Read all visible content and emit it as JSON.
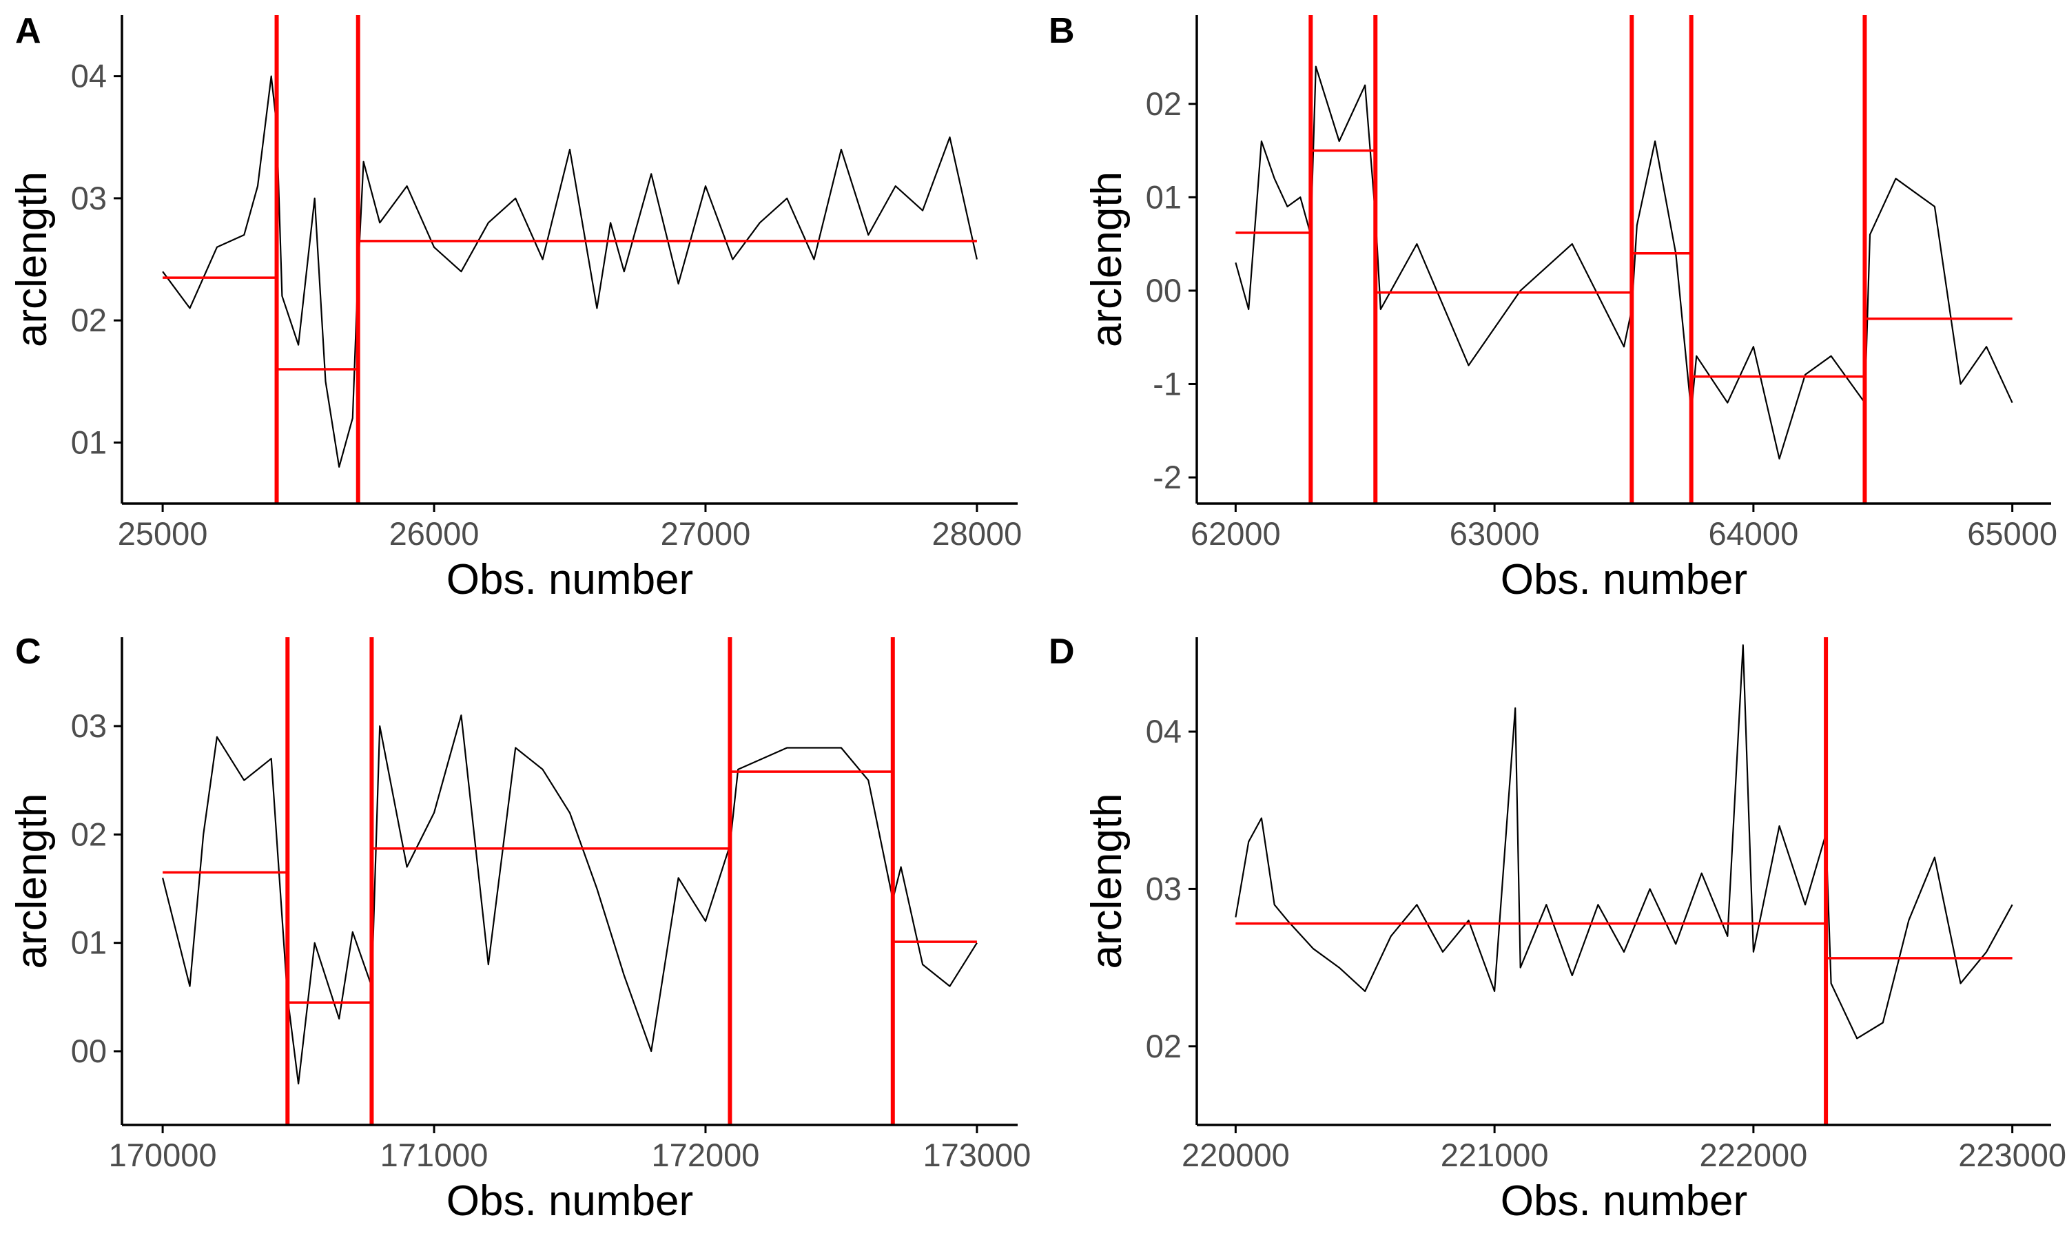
{
  "colors": {
    "series": "#000000",
    "changepoint": "#ff0000",
    "background": "#ffffff"
  },
  "chart_data": [
    {
      "panel": "A",
      "type": "line",
      "xlabel": "Obs. number",
      "ylabel": "arclength",
      "xlim": [
        24850,
        28150
      ],
      "ylim": [
        0.105,
        0.145
      ],
      "xticks": [
        25000,
        26000,
        27000,
        28000
      ],
      "xtick_labels": [
        "25000",
        "26000",
        "27000",
        "28000"
      ],
      "yticks": [
        0.11,
        0.12,
        0.13,
        0.14
      ],
      "ytick_labels": [
        "01",
        "02",
        "03",
        "04"
      ],
      "x": [
        25000,
        25100,
        25200,
        25300,
        25350,
        25400,
        25420,
        25440,
        25500,
        25560,
        25600,
        25650,
        25700,
        25720,
        25740,
        25800,
        25900,
        26000,
        26100,
        26200,
        26300,
        26400,
        26500,
        26600,
        26650,
        26700,
        26800,
        26900,
        27000,
        27100,
        27200,
        27300,
        27400,
        27500,
        27600,
        27700,
        27800,
        27900,
        28000
      ],
      "y": [
        0.124,
        0.121,
        0.126,
        0.127,
        0.131,
        0.14,
        0.136,
        0.122,
        0.118,
        0.13,
        0.115,
        0.108,
        0.112,
        0.124,
        0.133,
        0.128,
        0.131,
        0.126,
        0.124,
        0.128,
        0.13,
        0.125,
        0.134,
        0.121,
        0.128,
        0.124,
        0.132,
        0.123,
        0.131,
        0.125,
        0.128,
        0.13,
        0.125,
        0.134,
        0.127,
        0.131,
        0.129,
        0.135,
        0.125
      ],
      "segments": [
        {
          "x0": 25000,
          "x1": 25420,
          "y": 0.1235
        },
        {
          "x0": 25420,
          "x1": 25720,
          "y": 0.116
        },
        {
          "x0": 25720,
          "x1": 28000,
          "y": 0.1265
        }
      ],
      "changepoints": [
        25420,
        25720
      ]
    },
    {
      "panel": "B",
      "type": "line",
      "xlabel": "Obs. number",
      "ylabel": "arclength",
      "xlim": [
        61850,
        65150
      ],
      "ylim": [
        -2.28,
        2.95
      ],
      "xticks": [
        62000,
        63000,
        64000,
        65000
      ],
      "xtick_labels": [
        "62000",
        "63000",
        "64000",
        "65000"
      ],
      "yticks": [
        -2,
        -1,
        0,
        1,
        2
      ],
      "ytick_labels": [
        "-2",
        "-1",
        "00",
        "01",
        "02"
      ],
      "x": [
        62000,
        62050,
        62100,
        62150,
        62200,
        62250,
        62290,
        62310,
        62400,
        62500,
        62540,
        62560,
        62700,
        62900,
        63100,
        63300,
        63500,
        63530,
        63550,
        63620,
        63700,
        63760,
        63780,
        63900,
        64000,
        64100,
        64200,
        64300,
        64430,
        64450,
        64550,
        64700,
        64800,
        64900,
        65000
      ],
      "y": [
        0.3,
        -0.2,
        1.6,
        1.2,
        0.9,
        1.0,
        0.6,
        2.4,
        1.6,
        2.2,
        0.8,
        -0.2,
        0.5,
        -0.8,
        0.0,
        0.5,
        -0.6,
        -0.2,
        0.7,
        1.6,
        0.4,
        -1.3,
        -0.7,
        -1.2,
        -0.6,
        -1.8,
        -0.9,
        -0.7,
        -1.2,
        0.6,
        1.2,
        0.9,
        -1.0,
        -0.6,
        -1.2
      ],
      "segments": [
        {
          "x0": 62000,
          "x1": 62290,
          "y": 0.62
        },
        {
          "x0": 62290,
          "x1": 62540,
          "y": 1.5
        },
        {
          "x0": 62540,
          "x1": 63530,
          "y": -0.02
        },
        {
          "x0": 63530,
          "x1": 63760,
          "y": 0.4
        },
        {
          "x0": 63760,
          "x1": 64430,
          "y": -0.92
        },
        {
          "x0": 64430,
          "x1": 65000,
          "y": -0.3
        }
      ],
      "changepoints": [
        62290,
        62540,
        63530,
        63760,
        64430
      ]
    },
    {
      "panel": "C",
      "type": "line",
      "xlabel": "Obs. number",
      "ylabel": "arclength",
      "xlim": [
        169850,
        173150
      ],
      "ylim": [
        -0.068,
        0.382
      ],
      "xticks": [
        170000,
        171000,
        172000,
        173000
      ],
      "xtick_labels": [
        "170000",
        "171000",
        "172000",
        "173000"
      ],
      "yticks": [
        0.0,
        0.1,
        0.2,
        0.3
      ],
      "ytick_labels": [
        "00",
        "01",
        "02",
        "03"
      ],
      "x": [
        170000,
        170100,
        170150,
        170200,
        170300,
        170400,
        170460,
        170500,
        170560,
        170650,
        170700,
        170770,
        170800,
        170900,
        171000,
        171100,
        171200,
        171300,
        171400,
        171500,
        171600,
        171700,
        171800,
        171900,
        172000,
        172090,
        172120,
        172300,
        172500,
        172600,
        172690,
        172720,
        172800,
        172900,
        173000
      ],
      "y": [
        0.16,
        0.06,
        0.2,
        0.29,
        0.25,
        0.27,
        0.05,
        -0.03,
        0.1,
        0.03,
        0.11,
        0.06,
        0.3,
        0.17,
        0.22,
        0.31,
        0.08,
        0.28,
        0.26,
        0.22,
        0.15,
        0.07,
        0.0,
        0.16,
        0.12,
        0.19,
        0.26,
        0.28,
        0.28,
        0.25,
        0.14,
        0.17,
        0.08,
        0.06,
        0.1
      ],
      "segments": [
        {
          "x0": 170000,
          "x1": 170460,
          "y": 0.165
        },
        {
          "x0": 170460,
          "x1": 170770,
          "y": 0.045
        },
        {
          "x0": 170770,
          "x1": 172090,
          "y": 0.187
        },
        {
          "x0": 172090,
          "x1": 172690,
          "y": 0.258
        },
        {
          "x0": 172690,
          "x1": 173000,
          "y": 0.101
        }
      ],
      "changepoints": [
        170460,
        170770,
        172090,
        172690
      ]
    },
    {
      "panel": "D",
      "type": "line",
      "xlabel": "Obs. number",
      "ylabel": "arclength",
      "xlim": [
        219850,
        223150
      ],
      "ylim": [
        0.115,
        0.146
      ],
      "xticks": [
        220000,
        221000,
        222000,
        223000
      ],
      "xtick_labels": [
        "220000",
        "221000",
        "222000",
        "223000"
      ],
      "yticks": [
        0.12,
        0.13,
        0.14
      ],
      "ytick_labels": [
        "02",
        "03",
        "04"
      ],
      "x": [
        220000,
        220050,
        220100,
        220150,
        220200,
        220300,
        220400,
        220500,
        220600,
        220700,
        220800,
        220900,
        221000,
        221080,
        221100,
        221200,
        221300,
        221400,
        221500,
        221600,
        221700,
        221800,
        221900,
        221960,
        222000,
        222100,
        222200,
        222280,
        222300,
        222400,
        222500,
        222600,
        222700,
        222800,
        222900,
        223000
      ],
      "y": [
        0.1282,
        0.133,
        0.1345,
        0.129,
        0.128,
        0.1262,
        0.125,
        0.1235,
        0.127,
        0.129,
        0.126,
        0.128,
        0.1235,
        0.1415,
        0.125,
        0.129,
        0.1245,
        0.129,
        0.126,
        0.13,
        0.1265,
        0.131,
        0.127,
        0.1455,
        0.126,
        0.134,
        0.129,
        0.1335,
        0.124,
        0.1205,
        0.1215,
        0.128,
        0.132,
        0.124,
        0.126,
        0.129
      ],
      "segments": [
        {
          "x0": 220000,
          "x1": 222280,
          "y": 0.1278
        },
        {
          "x0": 222280,
          "x1": 223000,
          "y": 0.1256
        }
      ],
      "changepoints": [
        222280
      ]
    }
  ]
}
